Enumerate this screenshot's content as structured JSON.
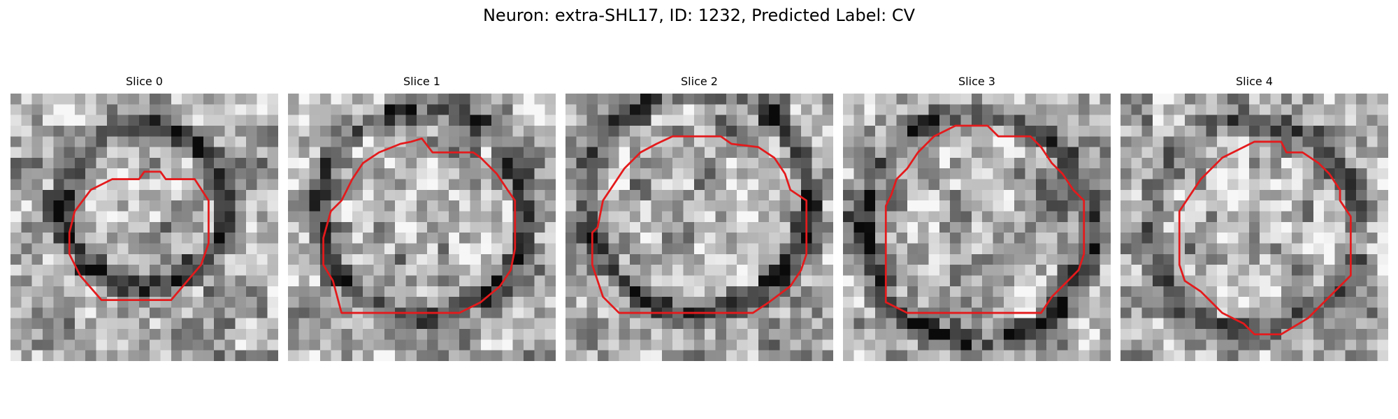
{
  "figure": {
    "title": "Neuron: extra-SHL17, ID: 1232, Predicted Label: CV",
    "outline_color": "#e41a1c"
  },
  "panels": [
    {
      "title": "Slice 0",
      "icon": "grayscale-microscopy-image",
      "ring_darkness": 0.85,
      "brightness_pattern": 1
    },
    {
      "title": "Slice 1",
      "icon": "grayscale-microscopy-image",
      "ring_darkness": 0.85,
      "brightness_pattern": 2
    },
    {
      "title": "Slice 2",
      "icon": "grayscale-microscopy-image",
      "ring_darkness": 0.9,
      "brightness_pattern": 3
    },
    {
      "title": "Slice 3",
      "icon": "grayscale-microscopy-image",
      "ring_darkness": 0.95,
      "brightness_pattern": 4
    },
    {
      "title": "Slice 4",
      "icon": "grayscale-microscopy-image",
      "ring_darkness": 0.7,
      "brightness_pattern": 5
    }
  ]
}
